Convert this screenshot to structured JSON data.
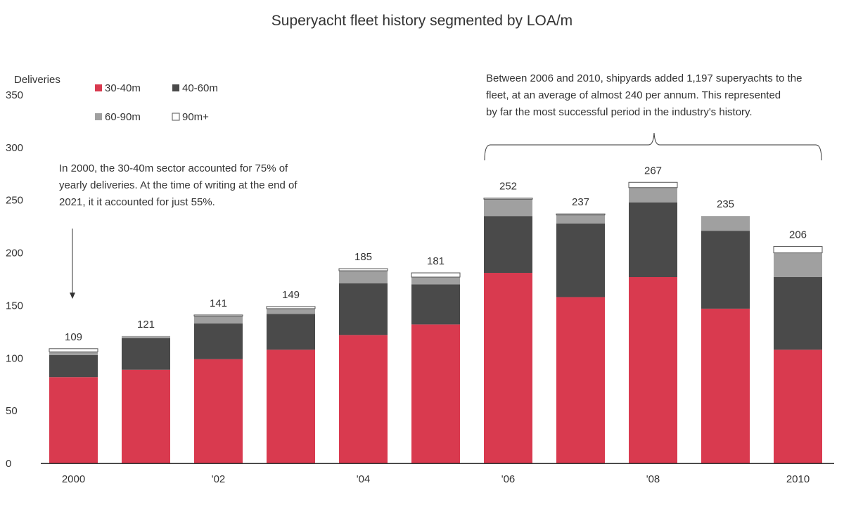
{
  "chart_data": {
    "type": "bar",
    "stacked": true,
    "title": "Superyacht fleet history segmented by LOA/m",
    "ylabel": "Deliveries",
    "xlabel": "",
    "ylim": [
      0,
      350
    ],
    "yticks": [
      0,
      50,
      100,
      150,
      200,
      250,
      300,
      350
    ],
    "grid": false,
    "legend_position": "top-left",
    "categories": [
      "2000",
      "2001",
      "2002",
      "2003",
      "2004",
      "2005",
      "2006",
      "2007",
      "2008",
      "2009",
      "2010"
    ],
    "tick_labels": [
      "2000",
      "",
      "'02",
      "",
      "'04",
      "",
      "'06",
      "",
      "'08",
      "",
      "2010"
    ],
    "series": [
      {
        "name": "30-40m",
        "color": "#d93a4f",
        "values": [
          82,
          89,
          99,
          108,
          122,
          132,
          181,
          158,
          177,
          147,
          108
        ]
      },
      {
        "name": "40-60m",
        "color": "#4a4a4a",
        "values": [
          21,
          30,
          34,
          34,
          49,
          38,
          54,
          70,
          71,
          74,
          69
        ]
      },
      {
        "name": "60-90m",
        "color": "#a0a0a0",
        "values": [
          3,
          2,
          7,
          5,
          12,
          7,
          16,
          8,
          14,
          14,
          23
        ]
      },
      {
        "name": "90m+",
        "color": "#ffffff",
        "values": [
          3,
          0,
          1,
          2,
          2,
          4,
          1,
          1,
          5,
          0,
          6
        ]
      }
    ],
    "totals": [
      109,
      121,
      141,
      149,
      185,
      181,
      252,
      237,
      267,
      235,
      206
    ],
    "annotations": [
      {
        "id": "note-2000",
        "lines": [
          "In 2000, the 30-40m sector accounted for 75% of",
          "yearly deliveries.  At the time of writing at the end of",
          "2021, it it accounted for just 55%."
        ]
      },
      {
        "id": "note-2006-2010",
        "lines": [
          "Between 2006 and 2010, shipyards added 1,197 superyachts to the",
          "fleet, at an average of almost 240 per annum.  This represented",
          "by far the most successful period in the industry's history."
        ]
      }
    ]
  }
}
